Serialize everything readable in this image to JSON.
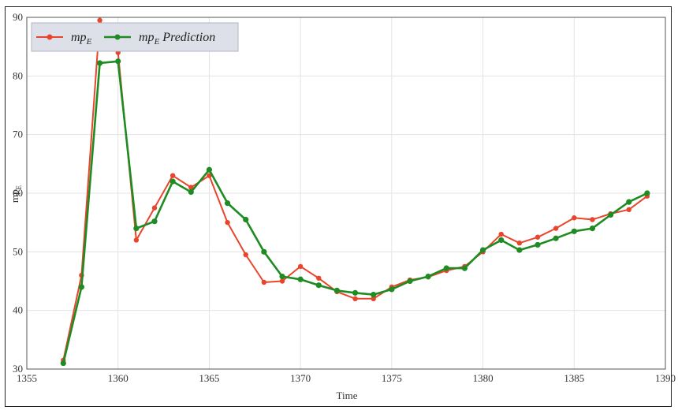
{
  "chart_data": {
    "type": "line",
    "xlabel": "Time",
    "ylabel": "mp",
    "ylabel_sub": "E",
    "xlim": [
      1355,
      1390
    ],
    "ylim": [
      30,
      90
    ],
    "xticks": [
      1355,
      1360,
      1365,
      1370,
      1375,
      1380,
      1385,
      1390
    ],
    "yticks": [
      30,
      40,
      50,
      60,
      70,
      80,
      90
    ],
    "grid": true,
    "legend_position": "top-left",
    "series": [
      {
        "name": "mp",
        "name_sub": "E",
        "color": "#e8452c",
        "x": [
          1357,
          1358,
          1359,
          1360,
          1361,
          1362,
          1363,
          1364,
          1365,
          1366,
          1367,
          1368,
          1369,
          1370,
          1371,
          1372,
          1373,
          1374,
          1375,
          1376,
          1377,
          1378,
          1379,
          1380,
          1381,
          1382,
          1383,
          1384,
          1385,
          1386,
          1387,
          1388,
          1389
        ],
        "values": [
          31.5,
          46,
          89.5,
          84,
          52,
          57.5,
          63,
          61,
          63,
          55,
          49.5,
          44.8,
          45,
          47.5,
          45.5,
          43.2,
          42,
          42,
          44,
          45.2,
          45.7,
          46.8,
          47.5,
          50,
          53,
          51.5,
          52.5,
          54,
          55.8,
          55.5,
          56.5,
          57.2,
          59.5
        ]
      },
      {
        "name": "mp",
        "name_sub": "E",
        "name_suffix": " Prediction",
        "color": "#1e8c22",
        "x": [
          1357,
          1358,
          1359,
          1360,
          1361,
          1362,
          1363,
          1364,
          1365,
          1366,
          1367,
          1368,
          1369,
          1370,
          1371,
          1372,
          1373,
          1374,
          1375,
          1376,
          1377,
          1378,
          1379,
          1380,
          1381,
          1382,
          1383,
          1384,
          1385,
          1386,
          1387,
          1388,
          1389
        ],
        "values": [
          31,
          44,
          82.2,
          82.5,
          54,
          55.2,
          62,
          60.2,
          64,
          58.3,
          55.5,
          50,
          45.8,
          45.3,
          44.3,
          43.4,
          43,
          42.7,
          43.6,
          45,
          45.8,
          47.2,
          47.2,
          50.3,
          52,
          50.3,
          51.2,
          52.3,
          53.5,
          54,
          56.3,
          58.5,
          60
        ]
      }
    ]
  }
}
